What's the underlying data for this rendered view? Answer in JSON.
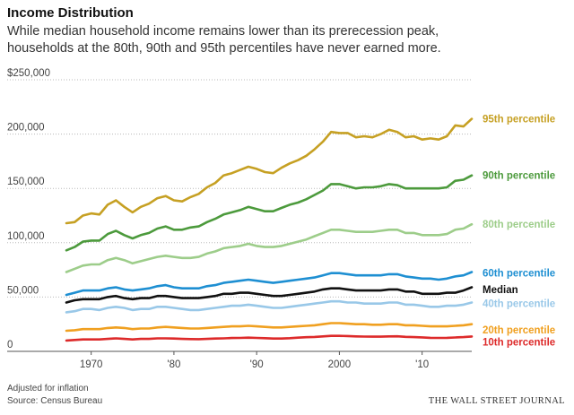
{
  "chart_data": {
    "type": "line",
    "title": "Income Distribution",
    "subtitle": [
      "While median household income remains lower than its prerecession peak,",
      "households at the 80th, 90th and 95th percentiles have never earned more."
    ],
    "y_ticks": [
      "$250,000",
      "200,000",
      "150,000",
      "100,000",
      "50,000",
      "0"
    ],
    "y_tick_values": [
      250000,
      200000,
      150000,
      100000,
      50000,
      0
    ],
    "x_ticks": [
      "1970",
      "'80",
      "'90",
      "2000",
      "'10"
    ],
    "x_tick_values": [
      1970,
      1980,
      1990,
      2000,
      2010
    ],
    "xlim": [
      1967,
      2016
    ],
    "ylim": [
      0,
      250000
    ],
    "grid": "horizontal dotted",
    "x": [
      1967,
      1968,
      1969,
      1970,
      1971,
      1972,
      1973,
      1974,
      1975,
      1976,
      1977,
      1978,
      1979,
      1980,
      1981,
      1982,
      1983,
      1984,
      1985,
      1986,
      1987,
      1988,
      1989,
      1990,
      1991,
      1992,
      1993,
      1994,
      1995,
      1996,
      1997,
      1998,
      1999,
      2000,
      2001,
      2002,
      2003,
      2004,
      2005,
      2006,
      2007,
      2008,
      2009,
      2010,
      2011,
      2012,
      2013,
      2014,
      2015,
      2016
    ],
    "series": [
      {
        "name": "95th percentile",
        "color": "#c6a023",
        "values": [
          118000,
          119000,
          125000,
          127000,
          126000,
          135000,
          139000,
          133000,
          128000,
          133000,
          136000,
          141000,
          143000,
          139000,
          138000,
          142000,
          145000,
          151000,
          155000,
          162000,
          164000,
          167000,
          170000,
          168000,
          165000,
          164000,
          169000,
          173000,
          176000,
          180000,
          186000,
          193000,
          202000,
          201000,
          201000,
          197000,
          198000,
          197000,
          200000,
          204000,
          202000,
          197000,
          198000,
          195000,
          196000,
          195000,
          198000,
          208000,
          207000,
          214000
        ]
      },
      {
        "name": "90th percentile",
        "color": "#4c9a3c",
        "values": [
          93000,
          96000,
          101000,
          102000,
          102000,
          108000,
          111000,
          107000,
          104000,
          107000,
          109000,
          113000,
          115000,
          112000,
          112000,
          114000,
          115000,
          119000,
          122000,
          126000,
          128000,
          130000,
          133000,
          131000,
          129000,
          129000,
          132000,
          135000,
          137000,
          140000,
          144000,
          148000,
          154000,
          154000,
          152000,
          150000,
          151000,
          151000,
          152000,
          154000,
          153000,
          150000,
          150000,
          150000,
          150000,
          150000,
          151000,
          157000,
          158000,
          162000
        ]
      },
      {
        "name": "80th percentile",
        "color": "#9dcd8a",
        "values": [
          73000,
          76000,
          79000,
          80000,
          80000,
          84000,
          86000,
          84000,
          81000,
          83000,
          85000,
          87000,
          88000,
          87000,
          86000,
          86000,
          87000,
          90000,
          92000,
          95000,
          96000,
          97000,
          99000,
          97000,
          96000,
          96000,
          97000,
          99000,
          101000,
          103000,
          106000,
          109000,
          112000,
          112000,
          111000,
          110000,
          110000,
          110000,
          111000,
          112000,
          112000,
          109000,
          109000,
          107000,
          107000,
          107000,
          108000,
          112000,
          113000,
          117000
        ]
      },
      {
        "name": "60th percentile",
        "color": "#1e8fd2",
        "values": [
          52000,
          54000,
          56000,
          56000,
          56000,
          58000,
          59000,
          57000,
          56000,
          57000,
          58000,
          60000,
          61000,
          59000,
          58000,
          58000,
          58000,
          60000,
          61000,
          63000,
          64000,
          65000,
          66000,
          65000,
          64000,
          63000,
          64000,
          65000,
          66000,
          67000,
          68000,
          70000,
          72000,
          72000,
          71000,
          70000,
          70000,
          70000,
          70000,
          71000,
          71000,
          69000,
          68000,
          67000,
          67000,
          66000,
          67000,
          69000,
          70000,
          73000
        ]
      },
      {
        "name": "Median",
        "color": "#111111",
        "values": [
          45000,
          47000,
          48000,
          48000,
          48000,
          50000,
          51000,
          49000,
          48000,
          49000,
          49000,
          51000,
          51000,
          50000,
          49000,
          49000,
          49000,
          50000,
          51000,
          53000,
          53000,
          54000,
          54000,
          53000,
          52000,
          51000,
          51000,
          52000,
          53000,
          54000,
          55000,
          57000,
          58000,
          58000,
          57000,
          56000,
          56000,
          56000,
          56000,
          57000,
          57000,
          55000,
          55000,
          53000,
          53000,
          53000,
          54000,
          54000,
          56000,
          59000
        ]
      },
      {
        "name": "40th percentile",
        "color": "#99c8e8",
        "values": [
          36000,
          37000,
          39000,
          39000,
          38000,
          40000,
          41000,
          40000,
          38000,
          39000,
          39000,
          41000,
          41000,
          40000,
          39000,
          38000,
          38000,
          39000,
          40000,
          41000,
          42000,
          42000,
          43000,
          42000,
          41000,
          40000,
          40000,
          41000,
          42000,
          43000,
          44000,
          45000,
          46000,
          46000,
          45000,
          45000,
          44000,
          44000,
          44000,
          45000,
          45000,
          43000,
          43000,
          42000,
          41000,
          41000,
          42000,
          42000,
          43000,
          45000
        ]
      },
      {
        "name": "20th percentile",
        "color": "#f0a020",
        "values": [
          19000,
          19500,
          20500,
          20500,
          20500,
          21500,
          22000,
          21500,
          20500,
          21000,
          21000,
          22000,
          22500,
          22000,
          21500,
          21000,
          21000,
          21500,
          22000,
          22500,
          23000,
          23000,
          23500,
          23000,
          22500,
          22000,
          22000,
          22500,
          23000,
          23500,
          24000,
          25000,
          26000,
          26000,
          25500,
          25000,
          25000,
          24500,
          24500,
          25000,
          25000,
          24000,
          24000,
          23500,
          23000,
          23000,
          23000,
          23500,
          24000,
          25000
        ]
      },
      {
        "name": "10th percentile",
        "color": "#dd2a2a",
        "values": [
          10000,
          10500,
          11000,
          11000,
          11000,
          11500,
          12000,
          11500,
          11000,
          11500,
          11500,
          12000,
          12000,
          11800,
          11500,
          11300,
          11200,
          11500,
          11800,
          12000,
          12300,
          12400,
          12600,
          12400,
          12100,
          11800,
          11800,
          12100,
          12600,
          13000,
          13300,
          13800,
          14300,
          14300,
          14100,
          13800,
          13600,
          13500,
          13500,
          13800,
          13900,
          13400,
          13100,
          12900,
          12500,
          12400,
          12500,
          12800,
          13100,
          13700
        ]
      }
    ],
    "series_labels": [
      {
        "text": "95th percentile",
        "color": "#c6a023",
        "anchor_value": 214000
      },
      {
        "text": "90th percentile",
        "color": "#4c9a3c",
        "anchor_value": 162000
      },
      {
        "text": "80th percentile",
        "color": "#9dcd8a",
        "anchor_value": 117000
      },
      {
        "text": "60th percentile",
        "color": "#1e8fd2",
        "anchor_value": 72000
      },
      {
        "text": "Median",
        "color": "#111111",
        "anchor_value": 57000
      },
      {
        "text": "40th percentile",
        "color": "#99c8e8",
        "anchor_value": 44000
      },
      {
        "text": "20th percentile",
        "color": "#f0a020",
        "anchor_value": 20000
      },
      {
        "text": "10th percentile",
        "color": "#dd2a2a",
        "anchor_value": 8500
      }
    ],
    "footnotes": [
      "Adjusted for inflation",
      "Source: Census Bureau"
    ],
    "brand": "THE WALL STREET JOURNAL"
  }
}
